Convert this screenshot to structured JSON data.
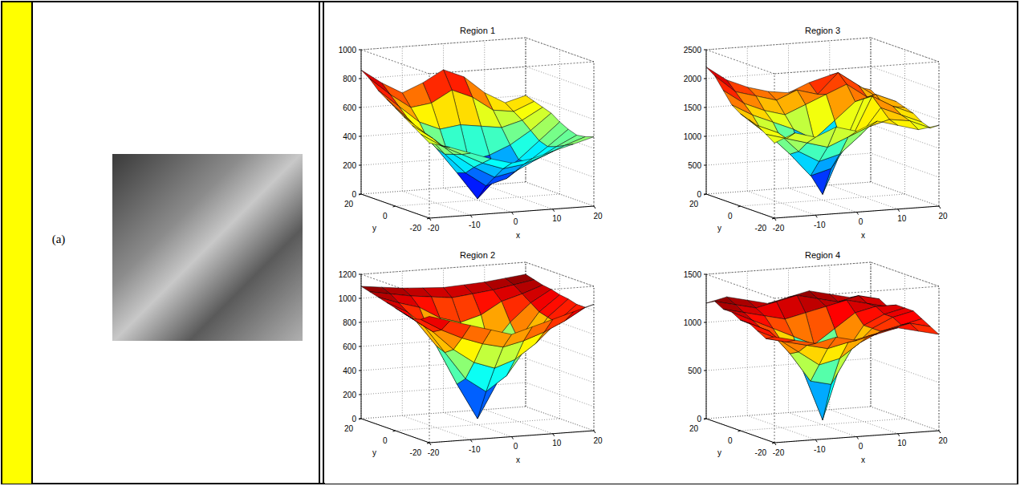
{
  "label": "(a)",
  "chart_data": [
    {
      "type": "surface",
      "title": "Region 1",
      "x_label": "x",
      "y_label": "y",
      "x": [
        -20,
        -15,
        -10,
        -5,
        0,
        5,
        10,
        15,
        20
      ],
      "y": [
        -20,
        -15,
        -10,
        -5,
        0,
        5,
        10,
        15,
        20
      ],
      "z": [
        [
          520,
          480,
          430,
          380,
          340,
          360,
          400,
          440,
          480
        ],
        [
          560,
          470,
          400,
          330,
          280,
          300,
          350,
          410,
          460
        ],
        [
          600,
          500,
          380,
          280,
          200,
          230,
          300,
          380,
          450
        ],
        [
          640,
          520,
          360,
          220,
          120,
          160,
          260,
          360,
          470
        ],
        [
          680,
          540,
          380,
          200,
          10,
          150,
          260,
          380,
          500
        ],
        [
          720,
          580,
          420,
          300,
          250,
          280,
          340,
          430,
          540
        ],
        [
          760,
          640,
          520,
          460,
          480,
          460,
          440,
          480,
          560
        ],
        [
          820,
          700,
          600,
          620,
          700,
          640,
          540,
          520,
          580
        ],
        [
          860,
          760,
          680,
          740,
          820,
          760,
          640,
          560,
          600
        ]
      ],
      "xlim": [
        -20,
        20
      ],
      "ylim": [
        -20,
        20
      ],
      "zlim": [
        0,
        1000
      ],
      "xticks": [
        -20,
        -10,
        0,
        10,
        20
      ],
      "yticks": [
        -20,
        0,
        20
      ],
      "zticks": [
        0,
        200,
        400,
        600,
        800,
        1000
      ],
      "grid": true
    },
    {
      "type": "surface",
      "title": "Region 3",
      "x_label": "x",
      "y_label": "y",
      "x": [
        -20,
        -15,
        -10,
        -5,
        0,
        5,
        10,
        15,
        20
      ],
      "y": [
        -20,
        -15,
        -10,
        -5,
        0,
        5,
        10,
        15,
        20
      ],
      "z": [
        [
          1300,
          1450,
          1350,
          1500,
          1400,
          1550,
          1450,
          1350,
          1400
        ],
        [
          1400,
          1300,
          1200,
          1100,
          1250,
          1400,
          1500,
          1450,
          1300
        ],
        [
          1500,
          1350,
          1000,
          800,
          900,
          1200,
          1650,
          1500,
          1350
        ],
        [
          1550,
          1250,
          900,
          500,
          600,
          1100,
          1800,
          1600,
          1450
        ],
        [
          1600,
          1300,
          1100,
          700,
          100,
          900,
          1700,
          1550,
          1500
        ],
        [
          1700,
          1500,
          1350,
          1200,
          1000,
          1300,
          1600,
          1700,
          1550
        ],
        [
          1900,
          1650,
          1500,
          1400,
          1550,
          1700,
          1850,
          1600,
          1450
        ],
        [
          2100,
          1800,
          1700,
          1600,
          1750,
          1650,
          2000,
          1750,
          1500
        ],
        [
          2200,
          1950,
          1800,
          1700,
          1650,
          1800,
          1900,
          1700,
          1600
        ]
      ],
      "xlim": [
        -20,
        20
      ],
      "ylim": [
        -20,
        20
      ],
      "zlim": [
        0,
        2500
      ],
      "xticks": [
        -20,
        -10,
        0,
        10,
        20
      ],
      "yticks": [
        -20,
        0,
        20
      ],
      "zticks": [
        0,
        500,
        1000,
        1500,
        2000,
        2500
      ],
      "grid": true
    },
    {
      "type": "surface",
      "title": "Region 2",
      "x_label": "x",
      "y_label": "y",
      "x": [
        -20,
        -15,
        -10,
        -5,
        0,
        5,
        10,
        15,
        20
      ],
      "y": [
        -20,
        -15,
        -10,
        -5,
        0,
        5,
        10,
        15,
        20
      ],
      "z": [
        [
          1050,
          1000,
          950,
          900,
          850,
          900,
          950,
          1000,
          1050
        ],
        [
          1000,
          900,
          820,
          760,
          720,
          760,
          820,
          900,
          1000
        ],
        [
          980,
          860,
          700,
          580,
          520,
          580,
          700,
          860,
          1000
        ],
        [
          1000,
          880,
          650,
          420,
          300,
          420,
          650,
          880,
          1020
        ],
        [
          1020,
          900,
          680,
          350,
          50,
          350,
          680,
          900,
          1030
        ],
        [
          1040,
          950,
          800,
          600,
          450,
          600,
          800,
          950,
          1050
        ],
        [
          1060,
          1000,
          950,
          850,
          800,
          850,
          950,
          1000,
          1060
        ],
        [
          1080,
          1050,
          1020,
          1000,
          980,
          1000,
          1020,
          1050,
          1080
        ],
        [
          1100,
          1080,
          1060,
          1050,
          1040,
          1050,
          1060,
          1080,
          1100
        ]
      ],
      "xlim": [
        -20,
        20
      ],
      "ylim": [
        -20,
        20
      ],
      "zlim": [
        0,
        1200
      ],
      "xticks": [
        -20,
        -10,
        0,
        10,
        20
      ],
      "yticks": [
        -20,
        0,
        20
      ],
      "zticks": [
        0,
        200,
        400,
        600,
        800,
        1000,
        1200
      ],
      "grid": true
    },
    {
      "type": "surface",
      "title": "Region 4",
      "x_label": "x",
      "y_label": "y",
      "x": [
        -20,
        -15,
        -10,
        -5,
        0,
        5,
        10,
        15,
        20
      ],
      "y": [
        -20,
        -15,
        -10,
        -5,
        0,
        5,
        10,
        15,
        20
      ],
      "z": [
        [
          1100,
          1050,
          1000,
          1050,
          1000,
          1050,
          1100,
          1050,
          1000
        ],
        [
          1050,
          1000,
          950,
          900,
          950,
          1000,
          1050,
          1100,
          1050
        ],
        [
          1100,
          1000,
          850,
          700,
          750,
          900,
          1000,
          1050,
          1100
        ],
        [
          1150,
          1050,
          800,
          500,
          450,
          800,
          1000,
          1100,
          1150
        ],
        [
          1150,
          1050,
          900,
          600,
          50,
          700,
          1000,
          1100,
          1150
        ],
        [
          1200,
          1100,
          1000,
          900,
          800,
          950,
          1100,
          1150,
          1150
        ],
        [
          1200,
          1150,
          1100,
          1050,
          1100,
          1150,
          1200,
          1150,
          1100
        ],
        [
          1250,
          1200,
          1150,
          1200,
          1250,
          1200,
          1150,
          1200,
          1150
        ],
        [
          1200,
          1250,
          1200,
          1150,
          1200,
          1250,
          1200,
          1150,
          1100
        ]
      ],
      "xlim": [
        -20,
        20
      ],
      "ylim": [
        -20,
        20
      ],
      "zlim": [
        0,
        1500
      ],
      "xticks": [
        -20,
        -10,
        0,
        10,
        20
      ],
      "yticks": [
        -20,
        0,
        20
      ],
      "zticks": [
        0,
        500,
        1000,
        1500
      ],
      "grid": true
    }
  ]
}
